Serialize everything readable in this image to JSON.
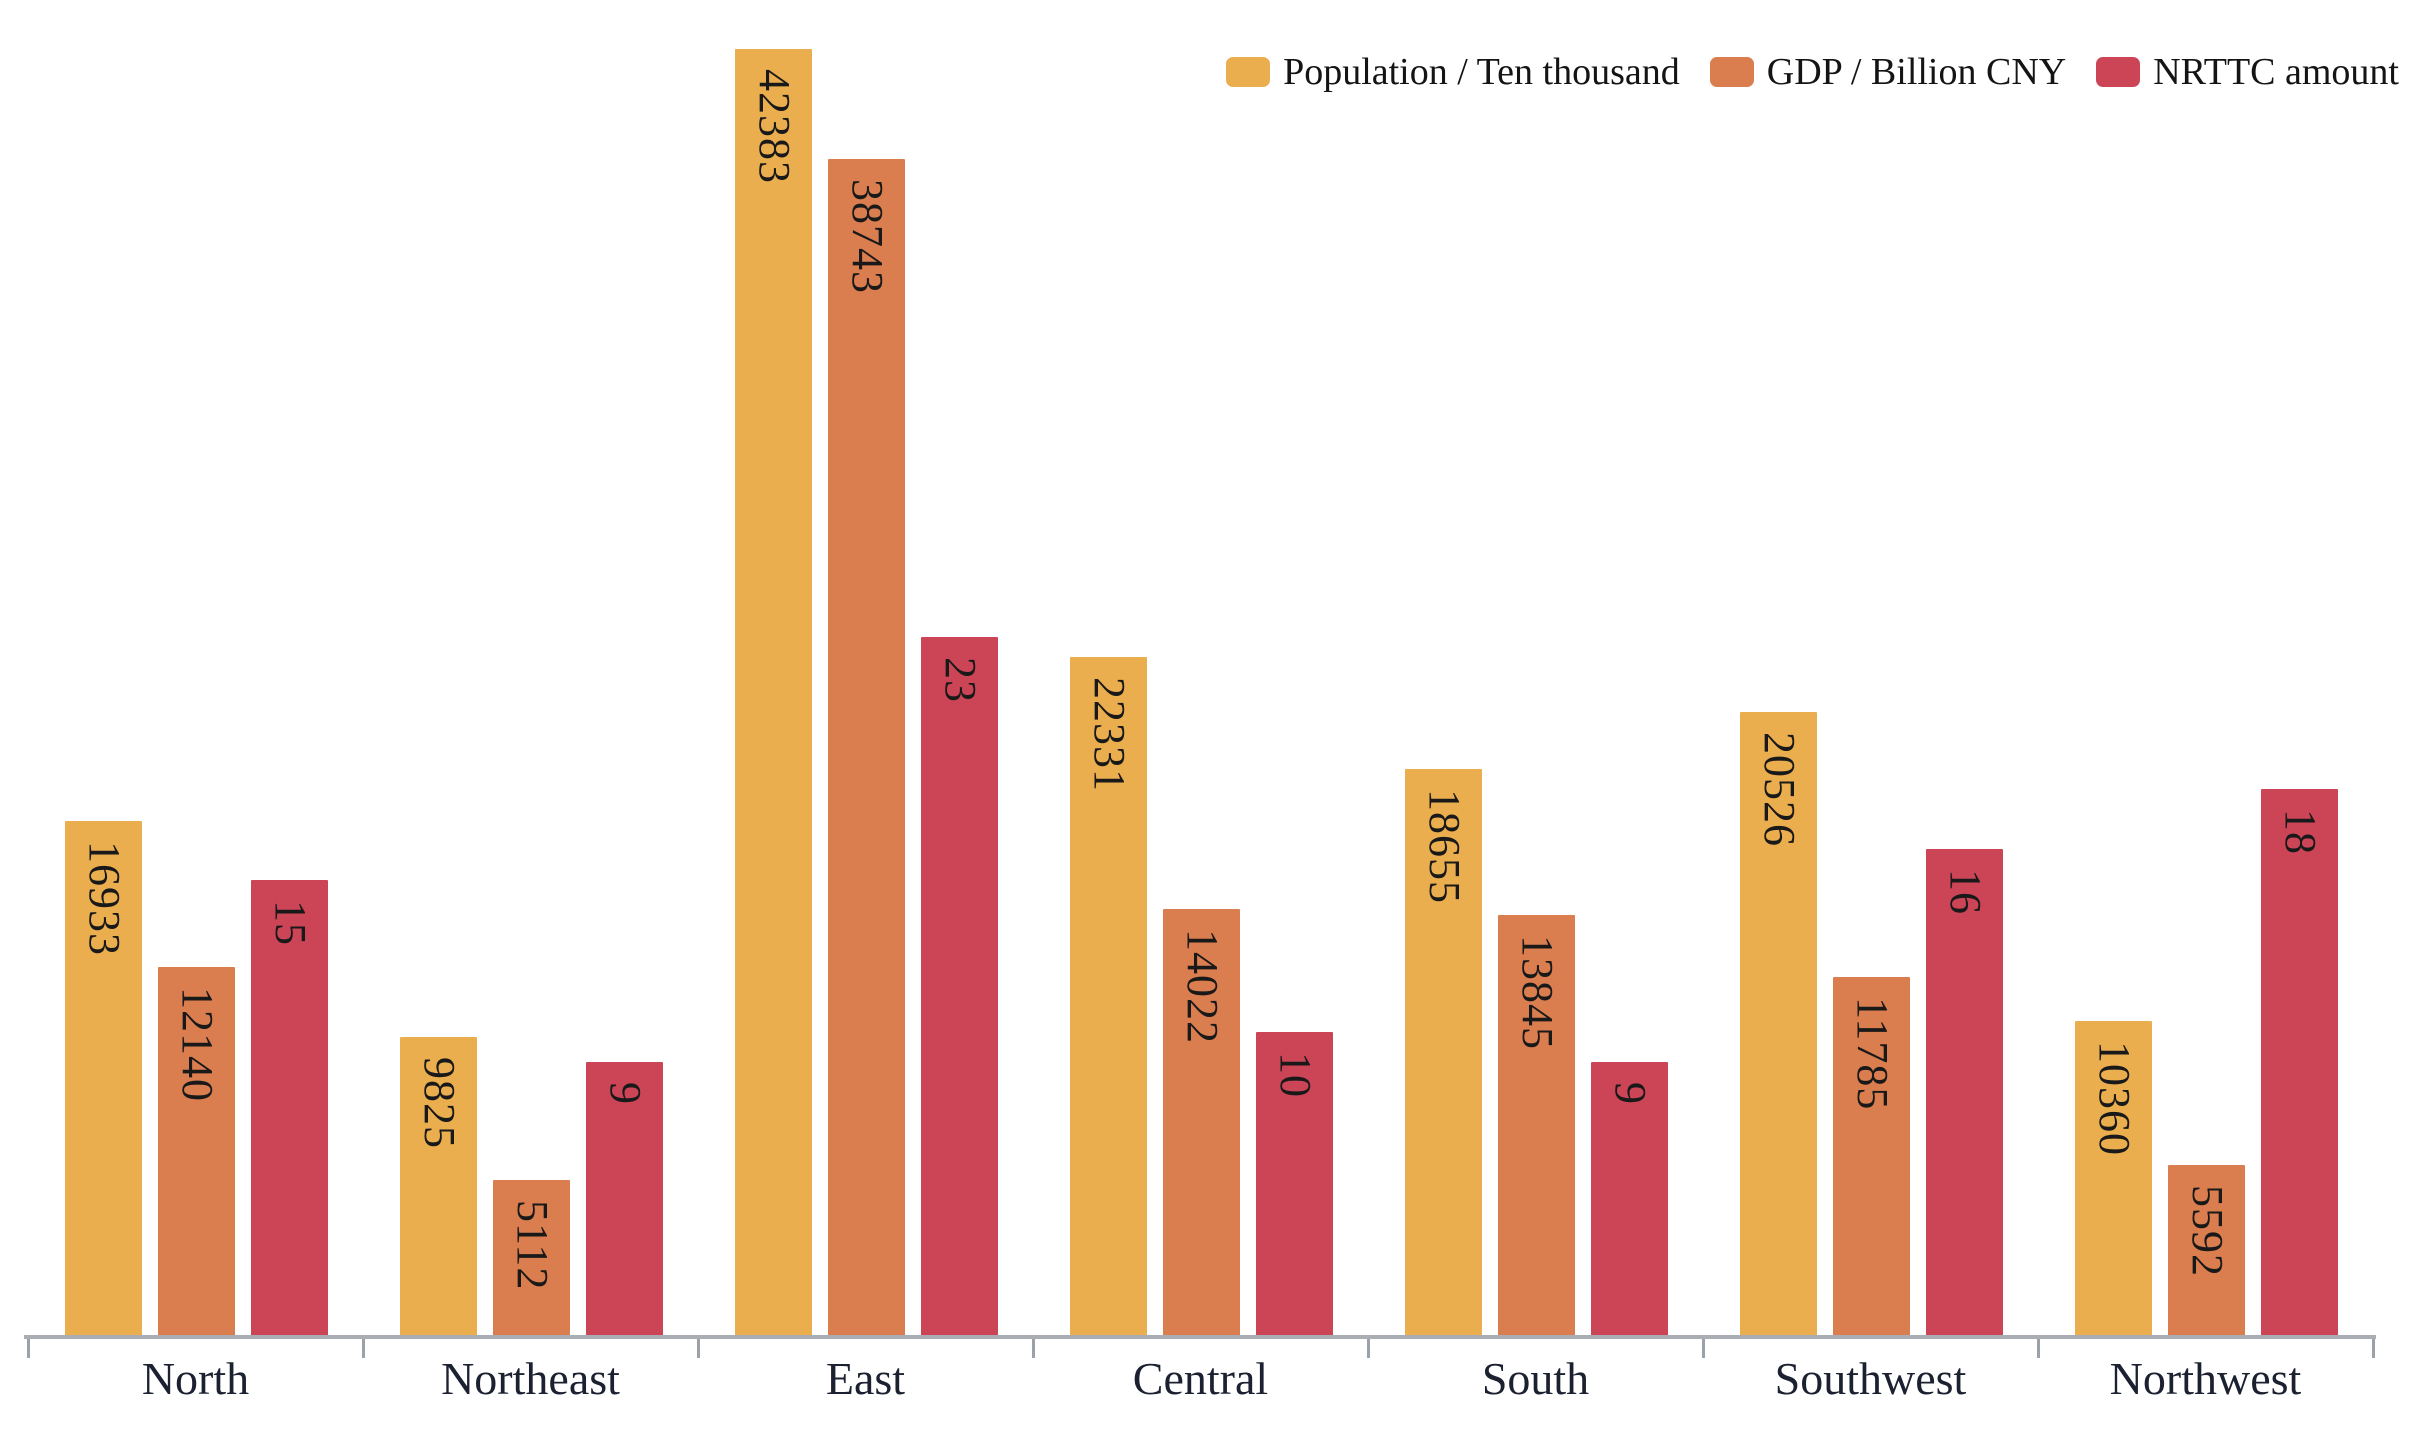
{
  "chart_data": {
    "type": "bar",
    "title": "",
    "categories": [
      "North",
      "Northeast",
      "East",
      "Central",
      "South",
      "Southwest",
      "Northwest"
    ],
    "series": [
      {
        "name": "Population / Ten thousand",
        "slug": "population",
        "axis": "primary",
        "color": "#EBAE4F",
        "values": [
          16933,
          9825,
          42383,
          22331,
          18655,
          20526,
          10360
        ]
      },
      {
        "name": "GDP / Billion CNY",
        "slug": "gdp",
        "axis": "primary",
        "color": "#DB7E4F",
        "values": [
          12140,
          5112,
          38743,
          14022,
          13845,
          11785,
          5592
        ]
      },
      {
        "name": "NRTTC amount",
        "slug": "nrttc",
        "axis": "secondary",
        "color": "#CB4557",
        "values": [
          15,
          9,
          23,
          10,
          9,
          16,
          18
        ]
      }
    ],
    "ylim_primary": [
      0,
      43000
    ],
    "ylim_secondary": [
      0,
      43
    ],
    "bar_value_labels": true,
    "value_label_rotation_deg": 90,
    "legend_position": "top-right",
    "grid": false,
    "background": "#FFFFFF",
    "axis_color": "#AAAEB4"
  }
}
